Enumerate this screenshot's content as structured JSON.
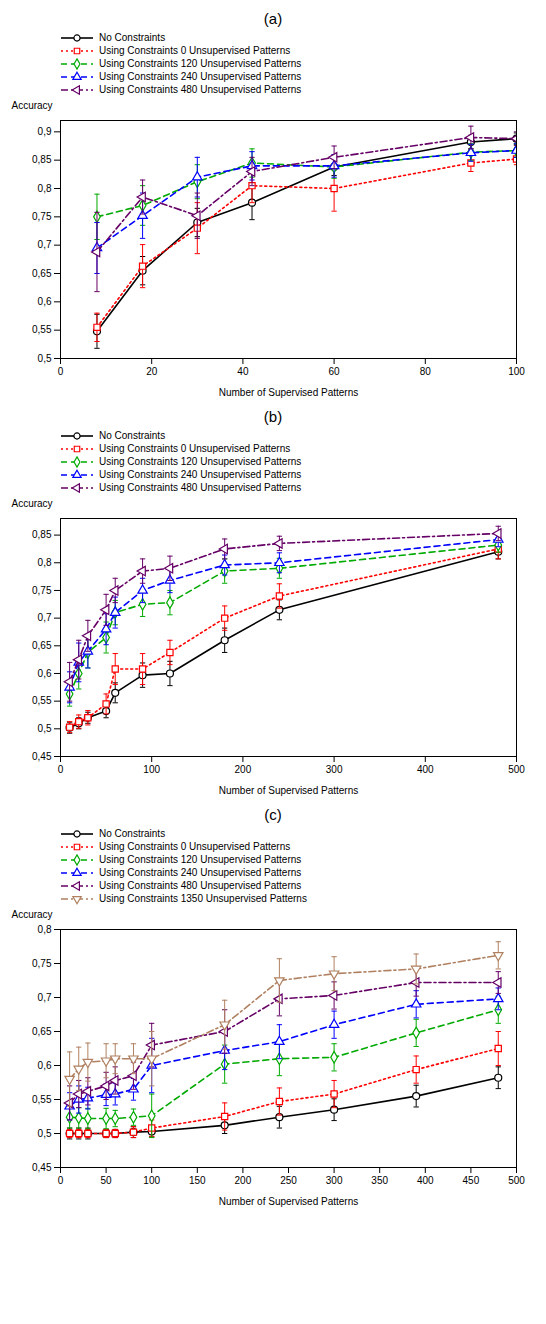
{
  "chart_data": [
    {
      "type": "line",
      "title": "(a)",
      "xlabel": "Number of Supervised Patterns",
      "ylabel": "Accuracy",
      "xlim": [
        0,
        100
      ],
      "ylim": [
        0.5,
        0.92
      ],
      "xticks": [
        0,
        20,
        40,
        60,
        80,
        100
      ],
      "yticks": [
        {
          "value": 0.5,
          "label": "0,5"
        },
        {
          "value": 0.55,
          "label": "0,55"
        },
        {
          "value": 0.6,
          "label": "0,6"
        },
        {
          "value": 0.65,
          "label": "0,65"
        },
        {
          "value": 0.7,
          "label": "0,7"
        },
        {
          "value": 0.75,
          "label": "0,75"
        },
        {
          "value": 0.8,
          "label": "0,8"
        },
        {
          "value": 0.85,
          "label": "0,85"
        },
        {
          "value": 0.9,
          "label": "0,9"
        }
      ],
      "grid": false,
      "x": [
        8,
        18,
        30,
        42,
        60,
        90,
        100
      ],
      "series": [
        {
          "name": "No Constraints",
          "color": "#000000",
          "marker": "circle",
          "line_style": "solid",
          "values": [
            0.548,
            0.655,
            0.74,
            0.775,
            0.838,
            0.882,
            0.888
          ],
          "yerr": [
            0.03,
            0.025,
            0.025,
            0.03,
            0.015,
            0.012,
            0.01
          ]
        },
        {
          "name": "Using Constraints 0 Unsupervised Patterns",
          "color": "#ff0000",
          "marker": "square",
          "line_style": "dotted",
          "values": [
            0.555,
            0.663,
            0.73,
            0.805,
            0.8,
            0.845,
            0.852
          ],
          "yerr": [
            0.025,
            0.038,
            0.045,
            0.03,
            0.04,
            0.015,
            0.01
          ]
        },
        {
          "name": "Using Constraints 120 Unsupervised Patterns",
          "color": "#00aa00",
          "marker": "diamond",
          "line_style": "dashed",
          "values": [
            0.75,
            0.77,
            0.812,
            0.845,
            0.838,
            0.864,
            0.867
          ],
          "yerr": [
            0.04,
            0.035,
            0.03,
            0.025,
            0.02,
            0.015,
            0.012
          ]
        },
        {
          "name": "Using Constraints 240 Unsupervised Patterns",
          "color": "#0000ff",
          "marker": "triangle-up",
          "line_style": "dashed",
          "values": [
            0.695,
            0.752,
            0.82,
            0.84,
            0.84,
            0.863,
            0.867
          ],
          "yerr": [
            0.045,
            0.04,
            0.035,
            0.025,
            0.02,
            0.015,
            0.012
          ]
        },
        {
          "name": "Using Constraints 480 Unsupervised Patterns",
          "color": "#660066",
          "marker": "triangle-left",
          "line_style": "dashdot",
          "values": [
            0.688,
            0.785,
            0.752,
            0.83,
            0.855,
            0.89,
            0.888
          ],
          "yerr": [
            0.07,
            0.03,
            0.04,
            0.025,
            0.02,
            0.02,
            0.012
          ]
        }
      ]
    },
    {
      "type": "line",
      "title": "(b)",
      "xlabel": "Number of Supervised Patterns",
      "ylabel": "Accuracy",
      "xlim": [
        0,
        500
      ],
      "ylim": [
        0.45,
        0.88
      ],
      "xticks": [
        0,
        100,
        200,
        300,
        400,
        500
      ],
      "yticks": [
        {
          "value": 0.45,
          "label": "0,45"
        },
        {
          "value": 0.5,
          "label": "0,5"
        },
        {
          "value": 0.55,
          "label": "0,55"
        },
        {
          "value": 0.6,
          "label": "0,6"
        },
        {
          "value": 0.65,
          "label": "0,65"
        },
        {
          "value": 0.7,
          "label": "0,7"
        },
        {
          "value": 0.75,
          "label": "0,75"
        },
        {
          "value": 0.8,
          "label": "0,8"
        },
        {
          "value": 0.85,
          "label": "0,85"
        }
      ],
      "grid": false,
      "x": [
        10,
        20,
        30,
        50,
        60,
        90,
        120,
        180,
        240,
        480
      ],
      "series": [
        {
          "name": "No Constraints",
          "color": "#000000",
          "marker": "circle",
          "line_style": "solid",
          "values": [
            0.502,
            0.51,
            0.52,
            0.532,
            0.565,
            0.597,
            0.6,
            0.66,
            0.715,
            0.82
          ],
          "yerr": [
            0.01,
            0.01,
            0.01,
            0.012,
            0.018,
            0.022,
            0.022,
            0.022,
            0.018,
            0.013
          ]
        },
        {
          "name": "Using Constraints 0 Unsupervised Patterns",
          "color": "#ff0000",
          "marker": "square",
          "line_style": "dotted",
          "values": [
            0.503,
            0.513,
            0.52,
            0.545,
            0.608,
            0.608,
            0.638,
            0.7,
            0.74,
            0.825
          ],
          "yerr": [
            0.01,
            0.012,
            0.013,
            0.018,
            0.028,
            0.028,
            0.022,
            0.022,
            0.022,
            0.018
          ]
        },
        {
          "name": "Using Constraints 120 Unsupervised Patterns",
          "color": "#00aa00",
          "marker": "diamond",
          "line_style": "dashed",
          "values": [
            0.563,
            0.6,
            0.638,
            0.665,
            0.71,
            0.725,
            0.728,
            0.785,
            0.79,
            0.832
          ],
          "yerr": [
            0.022,
            0.028,
            0.028,
            0.028,
            0.022,
            0.022,
            0.022,
            0.022,
            0.018,
            0.013
          ]
        },
        {
          "name": "Using Constraints 240 Unsupervised Patterns",
          "color": "#0000ff",
          "marker": "triangle-up",
          "line_style": "dashed",
          "values": [
            0.575,
            0.62,
            0.64,
            0.68,
            0.71,
            0.75,
            0.768,
            0.796,
            0.8,
            0.842
          ],
          "yerr": [
            0.028,
            0.035,
            0.03,
            0.028,
            0.028,
            0.022,
            0.022,
            0.018,
            0.018,
            0.013
          ]
        },
        {
          "name": "Using Constraints 480 Unsupervised Patterns",
          "color": "#660066",
          "marker": "triangle-left",
          "line_style": "dashdot",
          "values": [
            0.585,
            0.625,
            0.668,
            0.715,
            0.75,
            0.785,
            0.79,
            0.825,
            0.835,
            0.853
          ],
          "yerr": [
            0.035,
            0.035,
            0.028,
            0.028,
            0.022,
            0.022,
            0.022,
            0.018,
            0.013,
            0.013
          ]
        }
      ]
    },
    {
      "type": "line",
      "title": "(c)",
      "xlabel": "Number of Supervised Patterns",
      "ylabel": "Accuracy",
      "xlim": [
        0,
        500
      ],
      "ylim": [
        0.45,
        0.8
      ],
      "xticks": [
        0,
        50,
        100,
        150,
        200,
        250,
        300,
        350,
        400,
        450,
        500
      ],
      "yticks": [
        {
          "value": 0.45,
          "label": "0,45"
        },
        {
          "value": 0.5,
          "label": "0,5"
        },
        {
          "value": 0.55,
          "label": "0,55"
        },
        {
          "value": 0.6,
          "label": "0,6"
        },
        {
          "value": 0.65,
          "label": "0,65"
        },
        {
          "value": 0.7,
          "label": "0,7"
        },
        {
          "value": 0.75,
          "label": "0,75"
        },
        {
          "value": 0.8,
          "label": "0,8"
        }
      ],
      "grid": false,
      "x": [
        10,
        20,
        30,
        50,
        60,
        80,
        100,
        180,
        240,
        300,
        390,
        480
      ],
      "series": [
        {
          "name": "No Constraints",
          "color": "#000000",
          "marker": "circle",
          "line_style": "solid",
          "values": [
            0.5,
            0.5,
            0.5,
            0.5,
            0.5,
            0.502,
            0.503,
            0.512,
            0.524,
            0.535,
            0.555,
            0.582
          ],
          "yerr": [
            0.008,
            0.008,
            0.008,
            0.006,
            0.006,
            0.008,
            0.008,
            0.012,
            0.016,
            0.016,
            0.016,
            0.016
          ]
        },
        {
          "name": "Using Constraints 0 Unsupervised Patterns",
          "color": "#ff0000",
          "marker": "square",
          "line_style": "dotted",
          "values": [
            0.5,
            0.5,
            0.5,
            0.5,
            0.5,
            0.502,
            0.508,
            0.525,
            0.547,
            0.558,
            0.594,
            0.625
          ],
          "yerr": [
            0.006,
            0.006,
            0.006,
            0.006,
            0.006,
            0.008,
            0.012,
            0.02,
            0.02,
            0.02,
            0.02,
            0.025
          ]
        },
        {
          "name": "Using Constraints 120 Unsupervised Patterns",
          "color": "#00aa00",
          "marker": "diamond",
          "line_style": "dashed",
          "values": [
            0.524,
            0.523,
            0.522,
            0.522,
            0.522,
            0.524,
            0.526,
            0.602,
            0.61,
            0.612,
            0.648,
            0.682
          ],
          "yerr": [
            0.016,
            0.015,
            0.015,
            0.015,
            0.012,
            0.012,
            0.032,
            0.028,
            0.025,
            0.02,
            0.02,
            0.02
          ]
        },
        {
          "name": "Using Constraints 240 Unsupervised Patterns",
          "color": "#0000ff",
          "marker": "triangle-up",
          "line_style": "dashed",
          "values": [
            0.54,
            0.55,
            0.552,
            0.557,
            0.558,
            0.565,
            0.6,
            0.622,
            0.635,
            0.66,
            0.69,
            0.698
          ],
          "yerr": [
            0.02,
            0.02,
            0.016,
            0.016,
            0.016,
            0.016,
            0.04,
            0.028,
            0.025,
            0.02,
            0.02,
            0.016
          ]
        },
        {
          "name": "Using Constraints 480 Unsupervised Patterns",
          "color": "#660066",
          "marker": "triangle-left",
          "line_style": "dashdot",
          "values": [
            0.545,
            0.558,
            0.562,
            0.57,
            0.578,
            0.585,
            0.63,
            0.65,
            0.698,
            0.703,
            0.722,
            0.722
          ],
          "yerr": [
            0.025,
            0.02,
            0.02,
            0.02,
            0.02,
            0.02,
            0.032,
            0.032,
            0.025,
            0.02,
            0.02,
            0.016
          ]
        },
        {
          "name": "Using Constraints 1350 Unsupervised Patterns",
          "color": "#b08060",
          "marker": "triangle-down",
          "line_style": "dashdot",
          "values": [
            0.58,
            0.595,
            0.605,
            0.607,
            0.61,
            0.61,
            0.61,
            0.66,
            0.725,
            0.735,
            0.742,
            0.762
          ],
          "yerr": [
            0.04,
            0.032,
            0.028,
            0.025,
            0.022,
            0.022,
            0.04,
            0.036,
            0.032,
            0.025,
            0.022,
            0.02
          ]
        }
      ]
    }
  ]
}
